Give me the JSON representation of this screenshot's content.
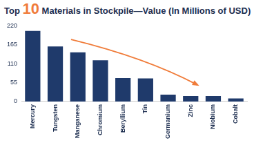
{
  "chart_data": {
    "type": "bar",
    "title": "Top 10 Materials in Stockpile—Value (In Millions of USD)",
    "categories": [
      "Mercury",
      "Tungsten",
      "Manganese",
      "Chromium",
      "Beryllium",
      "Tin",
      "Germanium",
      "Zinc",
      "Niobium",
      "Cobalt"
    ],
    "values": [
      205,
      160,
      143,
      120,
      68,
      67,
      20,
      16,
      16,
      9
    ],
    "color": "#1f3a6b",
    "ylim": [
      0,
      220
    ],
    "yticks": [
      0,
      55,
      110,
      165,
      220
    ],
    "grid": false
  }
}
